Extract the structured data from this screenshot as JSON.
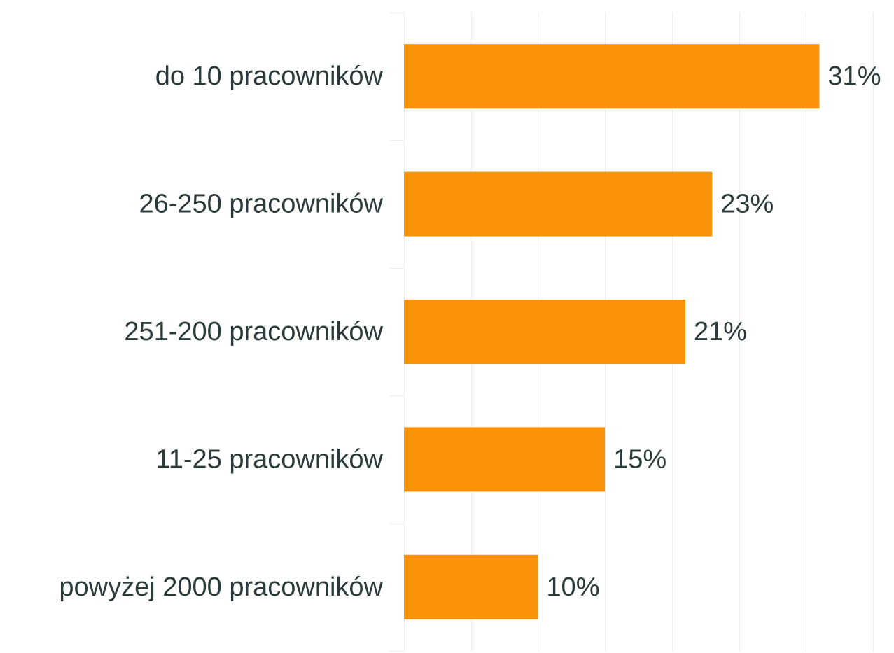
{
  "chart_data": {
    "type": "bar",
    "orientation": "horizontal",
    "categories": [
      "do 10 pracowników",
      "26-250 pracowników",
      "251-200 pracowników",
      "11-25 pracowników",
      "powyżej 2000 pracowników"
    ],
    "values": [
      31,
      23,
      21,
      15,
      10
    ],
    "value_labels": [
      "31%",
      "23%",
      "21%",
      "15%",
      "10%"
    ],
    "value_unit": "%",
    "xlim": [
      0,
      35
    ],
    "grid": true,
    "legend": "none",
    "bar_color": "#fa9208",
    "text_color": "#2b3b3b",
    "grid_color": "#ededed"
  }
}
